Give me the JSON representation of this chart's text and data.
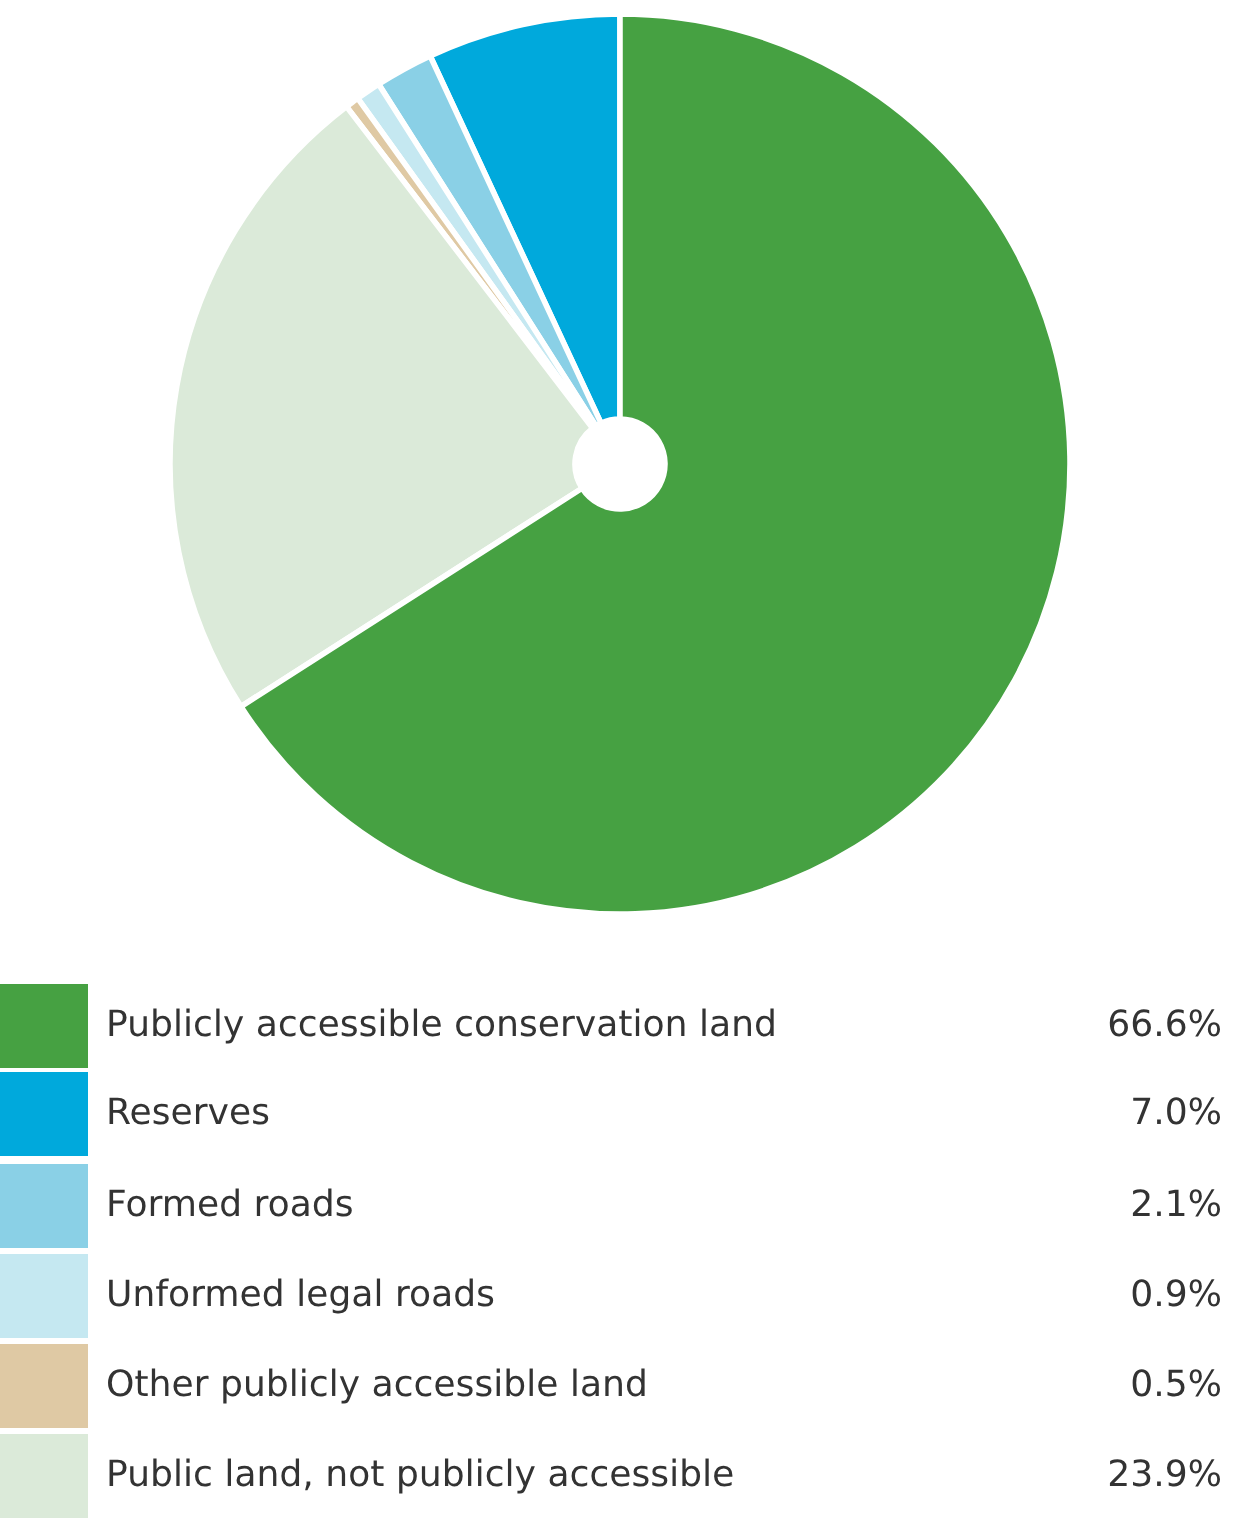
{
  "chart_data": {
    "type": "pie",
    "categories": [
      "Publicly accessible conservation land",
      "Reserves",
      "Formed roads",
      "Unformed legal roads",
      "Other publicly accessible land",
      "Public land, not publicly accessible"
    ],
    "values": [
      66.6,
      7.0,
      2.1,
      0.9,
      0.5,
      23.9
    ],
    "colors": [
      "#46a142",
      "#00a9dc",
      "#8ad0e6",
      "#c5e8f1",
      "#dfc9a4",
      "#dbead9"
    ],
    "value_labels": [
      "66.6%",
      "7.0%",
      "2.1%",
      "0.9%",
      "0.5%",
      "23.9%"
    ],
    "legend": "bottom"
  }
}
